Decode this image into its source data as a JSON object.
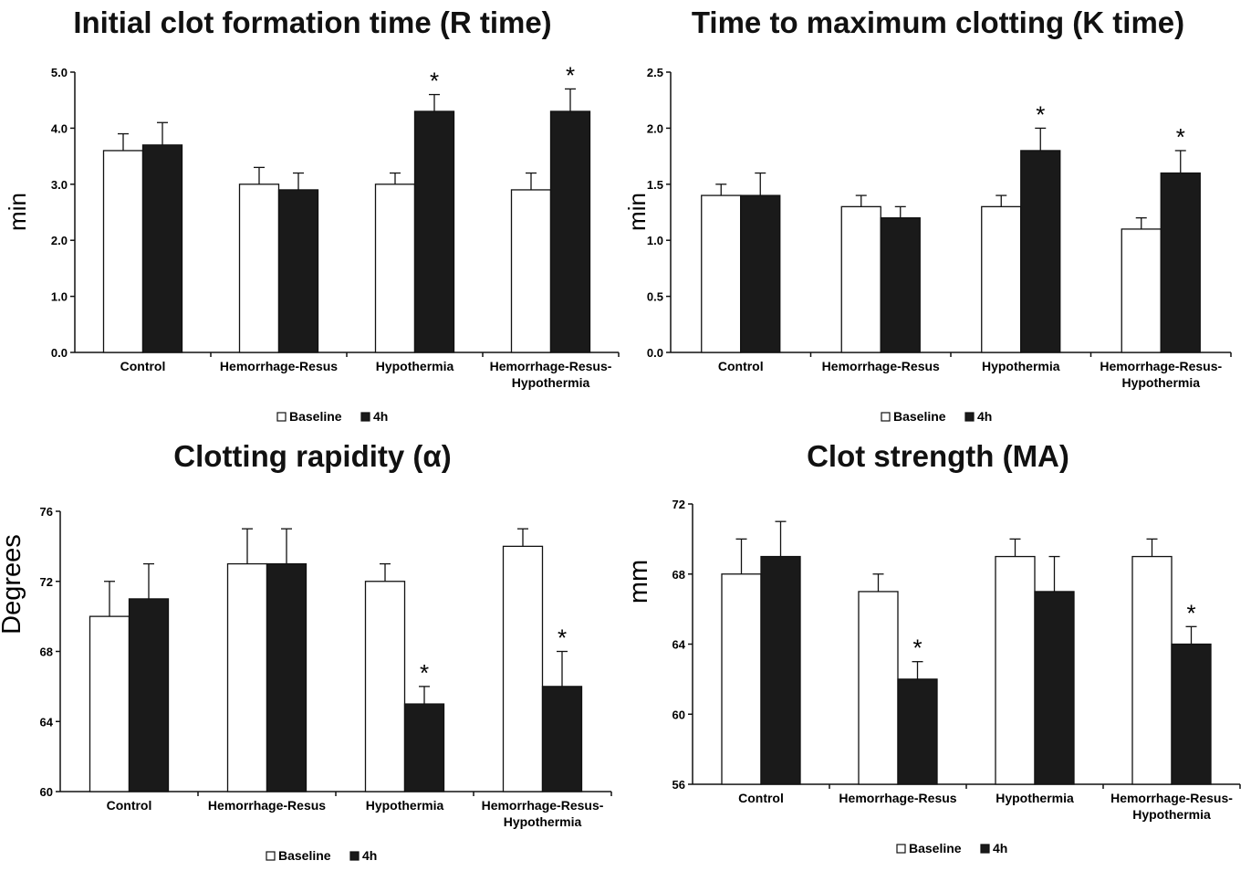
{
  "chart_data": [
    {
      "type": "bar",
      "title": "Initial clot formation time (R time)",
      "xlabel": "",
      "ylabel": "min",
      "ylim": [
        0,
        5
      ],
      "yticks": [
        "0.0",
        "1.0",
        "2.0",
        "3.0",
        "4.0",
        "5.0"
      ],
      "categories": [
        [
          "Control"
        ],
        [
          "Hemorrhage-Resus"
        ],
        [
          "Hypothermia"
        ],
        [
          "Hemorrhage-Resus-",
          "Hypothermia"
        ]
      ],
      "series": [
        {
          "name": "Baseline",
          "color": "#ffffff",
          "values": [
            3.6,
            3.0,
            3.0,
            2.9
          ],
          "errors": [
            0.3,
            0.3,
            0.2,
            0.3
          ]
        },
        {
          "name": "4h",
          "color": "#1a1a1a",
          "values": [
            3.7,
            2.9,
            4.3,
            4.3
          ],
          "errors": [
            0.4,
            0.3,
            0.3,
            0.4
          ]
        }
      ],
      "significance": [
        {
          "category": 2,
          "series": 1,
          "label": "*"
        },
        {
          "category": 3,
          "series": 1,
          "label": "*"
        }
      ],
      "grid": false,
      "legend": "bottom-center"
    },
    {
      "type": "bar",
      "title": "Time to maximum clotting (K time)",
      "xlabel": "",
      "ylabel": "min",
      "ylim": [
        0,
        2.5
      ],
      "yticks": [
        "0.0",
        "0.5",
        "1.0",
        "1.5",
        "2.0",
        "2.5"
      ],
      "categories": [
        [
          "Control"
        ],
        [
          "Hemorrhage-Resus"
        ],
        [
          "Hypothermia"
        ],
        [
          "Hemorrhage-Resus-",
          "Hypothermia"
        ]
      ],
      "series": [
        {
          "name": "Baseline",
          "color": "#ffffff",
          "values": [
            1.4,
            1.3,
            1.3,
            1.1
          ],
          "errors": [
            0.1,
            0.1,
            0.1,
            0.1
          ]
        },
        {
          "name": "4h",
          "color": "#1a1a1a",
          "values": [
            1.4,
            1.2,
            1.8,
            1.6
          ],
          "errors": [
            0.2,
            0.1,
            0.2,
            0.2
          ]
        }
      ],
      "significance": [
        {
          "category": 2,
          "series": 1,
          "label": "*"
        },
        {
          "category": 3,
          "series": 1,
          "label": "*"
        }
      ],
      "grid": false,
      "legend": "bottom-center"
    },
    {
      "type": "bar",
      "title": "Clotting rapidity (α)",
      "xlabel": "",
      "ylabel": "Degrees",
      "ylim": [
        60,
        76
      ],
      "yticks": [
        "60",
        "64",
        "68",
        "72",
        "76"
      ],
      "categories": [
        [
          "Control"
        ],
        [
          "Hemorrhage-Resus"
        ],
        [
          "Hypothermia"
        ],
        [
          "Hemorrhage-Resus-",
          "Hypothermia"
        ]
      ],
      "series": [
        {
          "name": "Baseline",
          "color": "#ffffff",
          "values": [
            70,
            73,
            72,
            74
          ],
          "errors": [
            2,
            2,
            1,
            1
          ]
        },
        {
          "name": "4h",
          "color": "#1a1a1a",
          "values": [
            71,
            73,
            65,
            66
          ],
          "errors": [
            2,
            2,
            1,
            2
          ]
        }
      ],
      "significance": [
        {
          "category": 2,
          "series": 1,
          "label": "*"
        },
        {
          "category": 3,
          "series": 1,
          "label": "*"
        }
      ],
      "grid": false,
      "legend": "bottom-center"
    },
    {
      "type": "bar",
      "title": "Clot strength (MA)",
      "xlabel": "",
      "ylabel": "mm",
      "ylim": [
        56,
        72
      ],
      "yticks": [
        "56",
        "60",
        "64",
        "68",
        "72"
      ],
      "categories": [
        [
          "Control"
        ],
        [
          "Hemorrhage-Resus"
        ],
        [
          "Hypothermia"
        ],
        [
          "Hemorrhage-Resus-",
          "Hypothermia"
        ]
      ],
      "series": [
        {
          "name": "Baseline",
          "color": "#ffffff",
          "values": [
            68,
            67,
            69,
            69
          ],
          "errors": [
            2,
            1,
            1,
            1
          ]
        },
        {
          "name": "4h",
          "color": "#1a1a1a",
          "values": [
            69,
            62,
            67,
            64
          ],
          "errors": [
            2,
            1,
            2,
            1
          ]
        }
      ],
      "significance": [
        {
          "category": 1,
          "series": 1,
          "label": "*"
        },
        {
          "category": 3,
          "series": 1,
          "label": "*"
        }
      ],
      "grid": false,
      "legend": "bottom-center"
    }
  ]
}
